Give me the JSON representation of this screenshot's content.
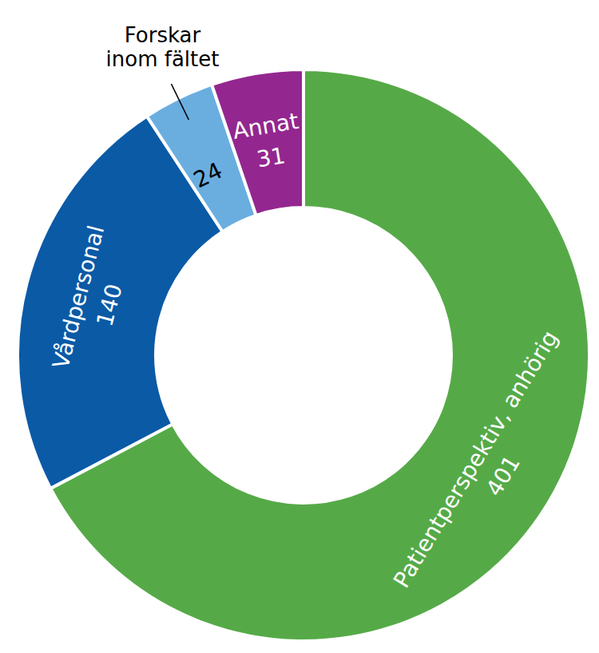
{
  "chart_data": {
    "type": "pie",
    "categories": [
      "Patientperspektiv, anhörig",
      "Vårdpersonal",
      "Forskar inom fältet",
      "Annat"
    ],
    "values": [
      401,
      140,
      24,
      31
    ],
    "colors": [
      "#55aa47",
      "#0b5aa6",
      "#6aaee0",
      "#93278f"
    ],
    "data_labels": true
  }
}
